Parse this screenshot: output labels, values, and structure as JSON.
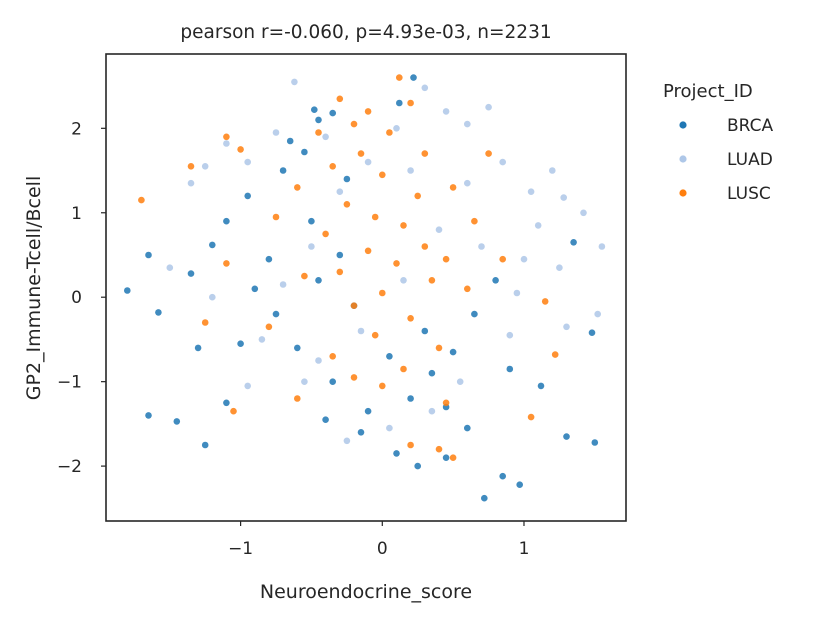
{
  "chart_data": {
    "type": "scatter",
    "title": "pearson r=-0.060, p=4.93e-03, n=2231",
    "xlabel": "Neuroendocrine_score",
    "ylabel": "GP2_Immune-Tcell/Bcell",
    "xlim": [
      -1.95,
      1.72
    ],
    "ylim": [
      -2.65,
      2.88
    ],
    "xticks": [
      -1,
      0,
      1
    ],
    "xtick_labels": [
      "−1",
      "0",
      "1"
    ],
    "yticks": [
      -2,
      -1,
      0,
      1,
      2
    ],
    "ytick_labels": [
      "−2",
      "−1",
      "0",
      "1",
      "2"
    ],
    "grid": false,
    "legend": {
      "title": "Project_ID",
      "placement": "outside-right",
      "entries": [
        "BRCA",
        "LUAD",
        "LUSC"
      ]
    },
    "series": [
      {
        "name": "BRCA",
        "color": "#1f77b4",
        "points": [
          [
            -1.8,
            0.08
          ],
          [
            -1.65,
            0.5
          ],
          [
            -1.58,
            -0.18
          ],
          [
            -1.65,
            -1.4
          ],
          [
            -1.45,
            -1.47
          ],
          [
            -1.3,
            -0.6
          ],
          [
            -1.25,
            -1.75
          ],
          [
            -1.1,
            -1.25
          ],
          [
            -1.35,
            0.28
          ],
          [
            -1.2,
            0.62
          ],
          [
            0.72,
            -2.38
          ],
          [
            0.85,
            -2.12
          ],
          [
            0.97,
            -2.22
          ],
          [
            1.3,
            -1.65
          ],
          [
            1.5,
            -1.72
          ],
          [
            1.35,
            0.65
          ],
          [
            1.48,
            -0.42
          ],
          [
            1.12,
            -1.05
          ],
          [
            -0.65,
            1.85
          ],
          [
            -0.55,
            1.72
          ],
          [
            -0.45,
            2.1
          ],
          [
            -0.48,
            2.22
          ],
          [
            -0.35,
            2.18
          ],
          [
            0.12,
            2.3
          ],
          [
            0.22,
            2.6
          ],
          [
            -0.3,
            0.5
          ],
          [
            -0.45,
            0.2
          ],
          [
            -0.2,
            -0.1
          ],
          [
            -0.6,
            -0.6
          ],
          [
            -0.35,
            -1.0
          ],
          [
            -0.1,
            -1.35
          ],
          [
            0.2,
            -1.2
          ],
          [
            0.35,
            -0.9
          ],
          [
            0.45,
            -1.3
          ],
          [
            0.6,
            -1.55
          ],
          [
            -0.75,
            -0.2
          ],
          [
            -0.9,
            0.1
          ],
          [
            -0.8,
            0.45
          ],
          [
            -1.0,
            -0.55
          ],
          [
            -1.1,
            0.9
          ],
          [
            -0.95,
            1.2
          ],
          [
            -0.7,
            1.5
          ],
          [
            -0.5,
            0.9
          ],
          [
            -0.25,
            1.4
          ],
          [
            0.05,
            -0.7
          ],
          [
            0.3,
            -0.4
          ],
          [
            0.5,
            -0.65
          ],
          [
            0.65,
            -0.2
          ],
          [
            0.8,
            0.2
          ],
          [
            0.9,
            -0.85
          ],
          [
            -0.4,
            -1.45
          ],
          [
            -0.15,
            -1.6
          ],
          [
            0.1,
            -1.85
          ],
          [
            0.25,
            -2.0
          ],
          [
            0.45,
            -1.9
          ]
        ]
      },
      {
        "name": "LUAD",
        "color": "#aec7e8",
        "points": [
          [
            -0.62,
            2.55
          ],
          [
            -1.5,
            0.35
          ],
          [
            -1.25,
            1.55
          ],
          [
            -1.35,
            1.35
          ],
          [
            -1.1,
            1.82
          ],
          [
            1.05,
            1.25
          ],
          [
            1.2,
            1.5
          ],
          [
            1.28,
            1.18
          ],
          [
            1.42,
            1.0
          ],
          [
            1.55,
            0.6
          ],
          [
            1.52,
            -0.2
          ],
          [
            1.25,
            0.35
          ],
          [
            1.1,
            0.85
          ],
          [
            0.95,
            0.05
          ],
          [
            0.9,
            -0.45
          ],
          [
            0.75,
            2.25
          ],
          [
            0.6,
            2.05
          ],
          [
            0.45,
            2.2
          ],
          [
            0.3,
            2.48
          ],
          [
            0.1,
            2.0
          ],
          [
            -0.1,
            1.6
          ],
          [
            -0.3,
            1.25
          ],
          [
            -0.5,
            0.6
          ],
          [
            -0.7,
            0.15
          ],
          [
            -0.85,
            -0.5
          ],
          [
            -0.55,
            -1.0
          ],
          [
            -0.25,
            -1.7
          ],
          [
            0.05,
            -1.55
          ],
          [
            0.35,
            -1.35
          ],
          [
            0.55,
            -1.0
          ],
          [
            0.7,
            0.6
          ],
          [
            0.85,
            1.6
          ],
          [
            -0.95,
            1.6
          ],
          [
            -0.75,
            1.95
          ],
          [
            -0.4,
            1.9
          ],
          [
            0.2,
            1.5
          ],
          [
            0.4,
            0.8
          ],
          [
            0.15,
            0.2
          ],
          [
            -0.15,
            -0.4
          ],
          [
            -0.45,
            -0.75
          ],
          [
            1.0,
            0.45
          ],
          [
            1.3,
            -0.35
          ],
          [
            -1.2,
            0.0
          ],
          [
            -0.95,
            -1.05
          ],
          [
            0.6,
            1.35
          ]
        ]
      },
      {
        "name": "LUSC",
        "color": "#ff7f0e",
        "points": [
          [
            -1.7,
            1.15
          ],
          [
            -1.35,
            1.55
          ],
          [
            -1.1,
            1.9
          ],
          [
            -1.0,
            1.75
          ],
          [
            -0.3,
            2.35
          ],
          [
            0.12,
            2.6
          ],
          [
            0.2,
            2.3
          ],
          [
            -0.1,
            2.2
          ],
          [
            -0.2,
            2.05
          ],
          [
            0.05,
            1.95
          ],
          [
            -0.15,
            1.7
          ],
          [
            -0.35,
            1.55
          ],
          [
            0.0,
            1.45
          ],
          [
            0.25,
            1.2
          ],
          [
            -0.25,
            1.1
          ],
          [
            -0.05,
            0.95
          ],
          [
            0.15,
            0.85
          ],
          [
            -0.4,
            0.75
          ],
          [
            0.3,
            0.6
          ],
          [
            -0.1,
            0.55
          ],
          [
            0.1,
            0.4
          ],
          [
            -0.3,
            0.3
          ],
          [
            0.35,
            0.2
          ],
          [
            0.0,
            0.05
          ],
          [
            -0.2,
            -0.1
          ],
          [
            0.2,
            -0.25
          ],
          [
            -0.05,
            -0.45
          ],
          [
            0.4,
            -0.6
          ],
          [
            -0.35,
            -0.7
          ],
          [
            0.15,
            -0.85
          ],
          [
            0.0,
            -1.05
          ],
          [
            0.45,
            -1.25
          ],
          [
            0.5,
            -1.9
          ],
          [
            0.4,
            -1.8
          ],
          [
            0.2,
            -1.75
          ],
          [
            1.05,
            -1.42
          ],
          [
            1.22,
            -0.68
          ],
          [
            1.15,
            -0.05
          ],
          [
            0.85,
            0.45
          ],
          [
            0.65,
            0.9
          ],
          [
            0.5,
            1.3
          ],
          [
            0.75,
            1.7
          ],
          [
            -0.6,
            1.3
          ],
          [
            -0.75,
            0.95
          ],
          [
            -0.55,
            0.25
          ],
          [
            -0.8,
            -0.35
          ],
          [
            -1.25,
            -0.3
          ],
          [
            -1.1,
            0.4
          ],
          [
            -1.05,
            -1.35
          ],
          [
            -0.6,
            -1.2
          ],
          [
            0.6,
            0.1
          ],
          [
            0.3,
            1.7
          ],
          [
            -0.45,
            1.95
          ],
          [
            0.45,
            0.45
          ],
          [
            -0.2,
            -0.95
          ]
        ]
      }
    ]
  }
}
